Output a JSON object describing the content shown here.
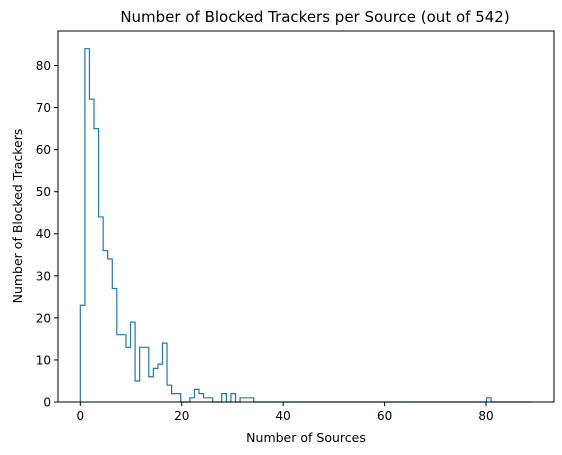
{
  "chart_data": {
    "type": "histogram",
    "title": "Number of Blocked Trackers per Source (out of 542)",
    "xlabel": "Number of Sources",
    "ylabel": "Number of Blocked Trackers",
    "xlim": [
      -4.4,
      93.4
    ],
    "ylim": [
      0,
      88.2
    ],
    "xticks": [
      0,
      20,
      40,
      60,
      80
    ],
    "yticks": [
      0,
      10,
      20,
      30,
      40,
      50,
      60,
      70,
      80
    ],
    "bin_edges_start": 0,
    "bin_width": 0.9,
    "bin_end": 89,
    "counts": [
      23,
      84,
      72,
      65,
      44,
      36,
      34,
      27,
      16,
      16,
      13,
      19,
      5,
      13,
      13,
      6,
      8,
      9,
      14,
      4,
      2,
      2,
      0,
      0,
      1,
      3,
      2,
      1,
      1,
      0,
      0,
      2,
      0,
      2,
      0,
      1,
      1,
      1,
      0,
      0,
      0,
      0,
      0,
      0,
      0,
      0,
      0,
      0,
      0,
      0,
      0,
      0,
      0,
      0,
      0,
      0,
      0,
      0,
      0,
      0,
      0,
      0,
      0,
      0,
      0,
      0,
      0,
      0,
      0,
      0,
      0,
      0,
      0,
      0,
      0,
      0,
      0,
      0,
      0,
      0,
      0,
      0,
      0,
      0,
      0,
      0,
      0,
      0,
      0,
      1,
      0,
      0,
      0,
      0,
      0,
      0,
      0,
      0,
      0
    ],
    "line_color": "#1f77b4",
    "histtype": "step",
    "grid": false
  }
}
